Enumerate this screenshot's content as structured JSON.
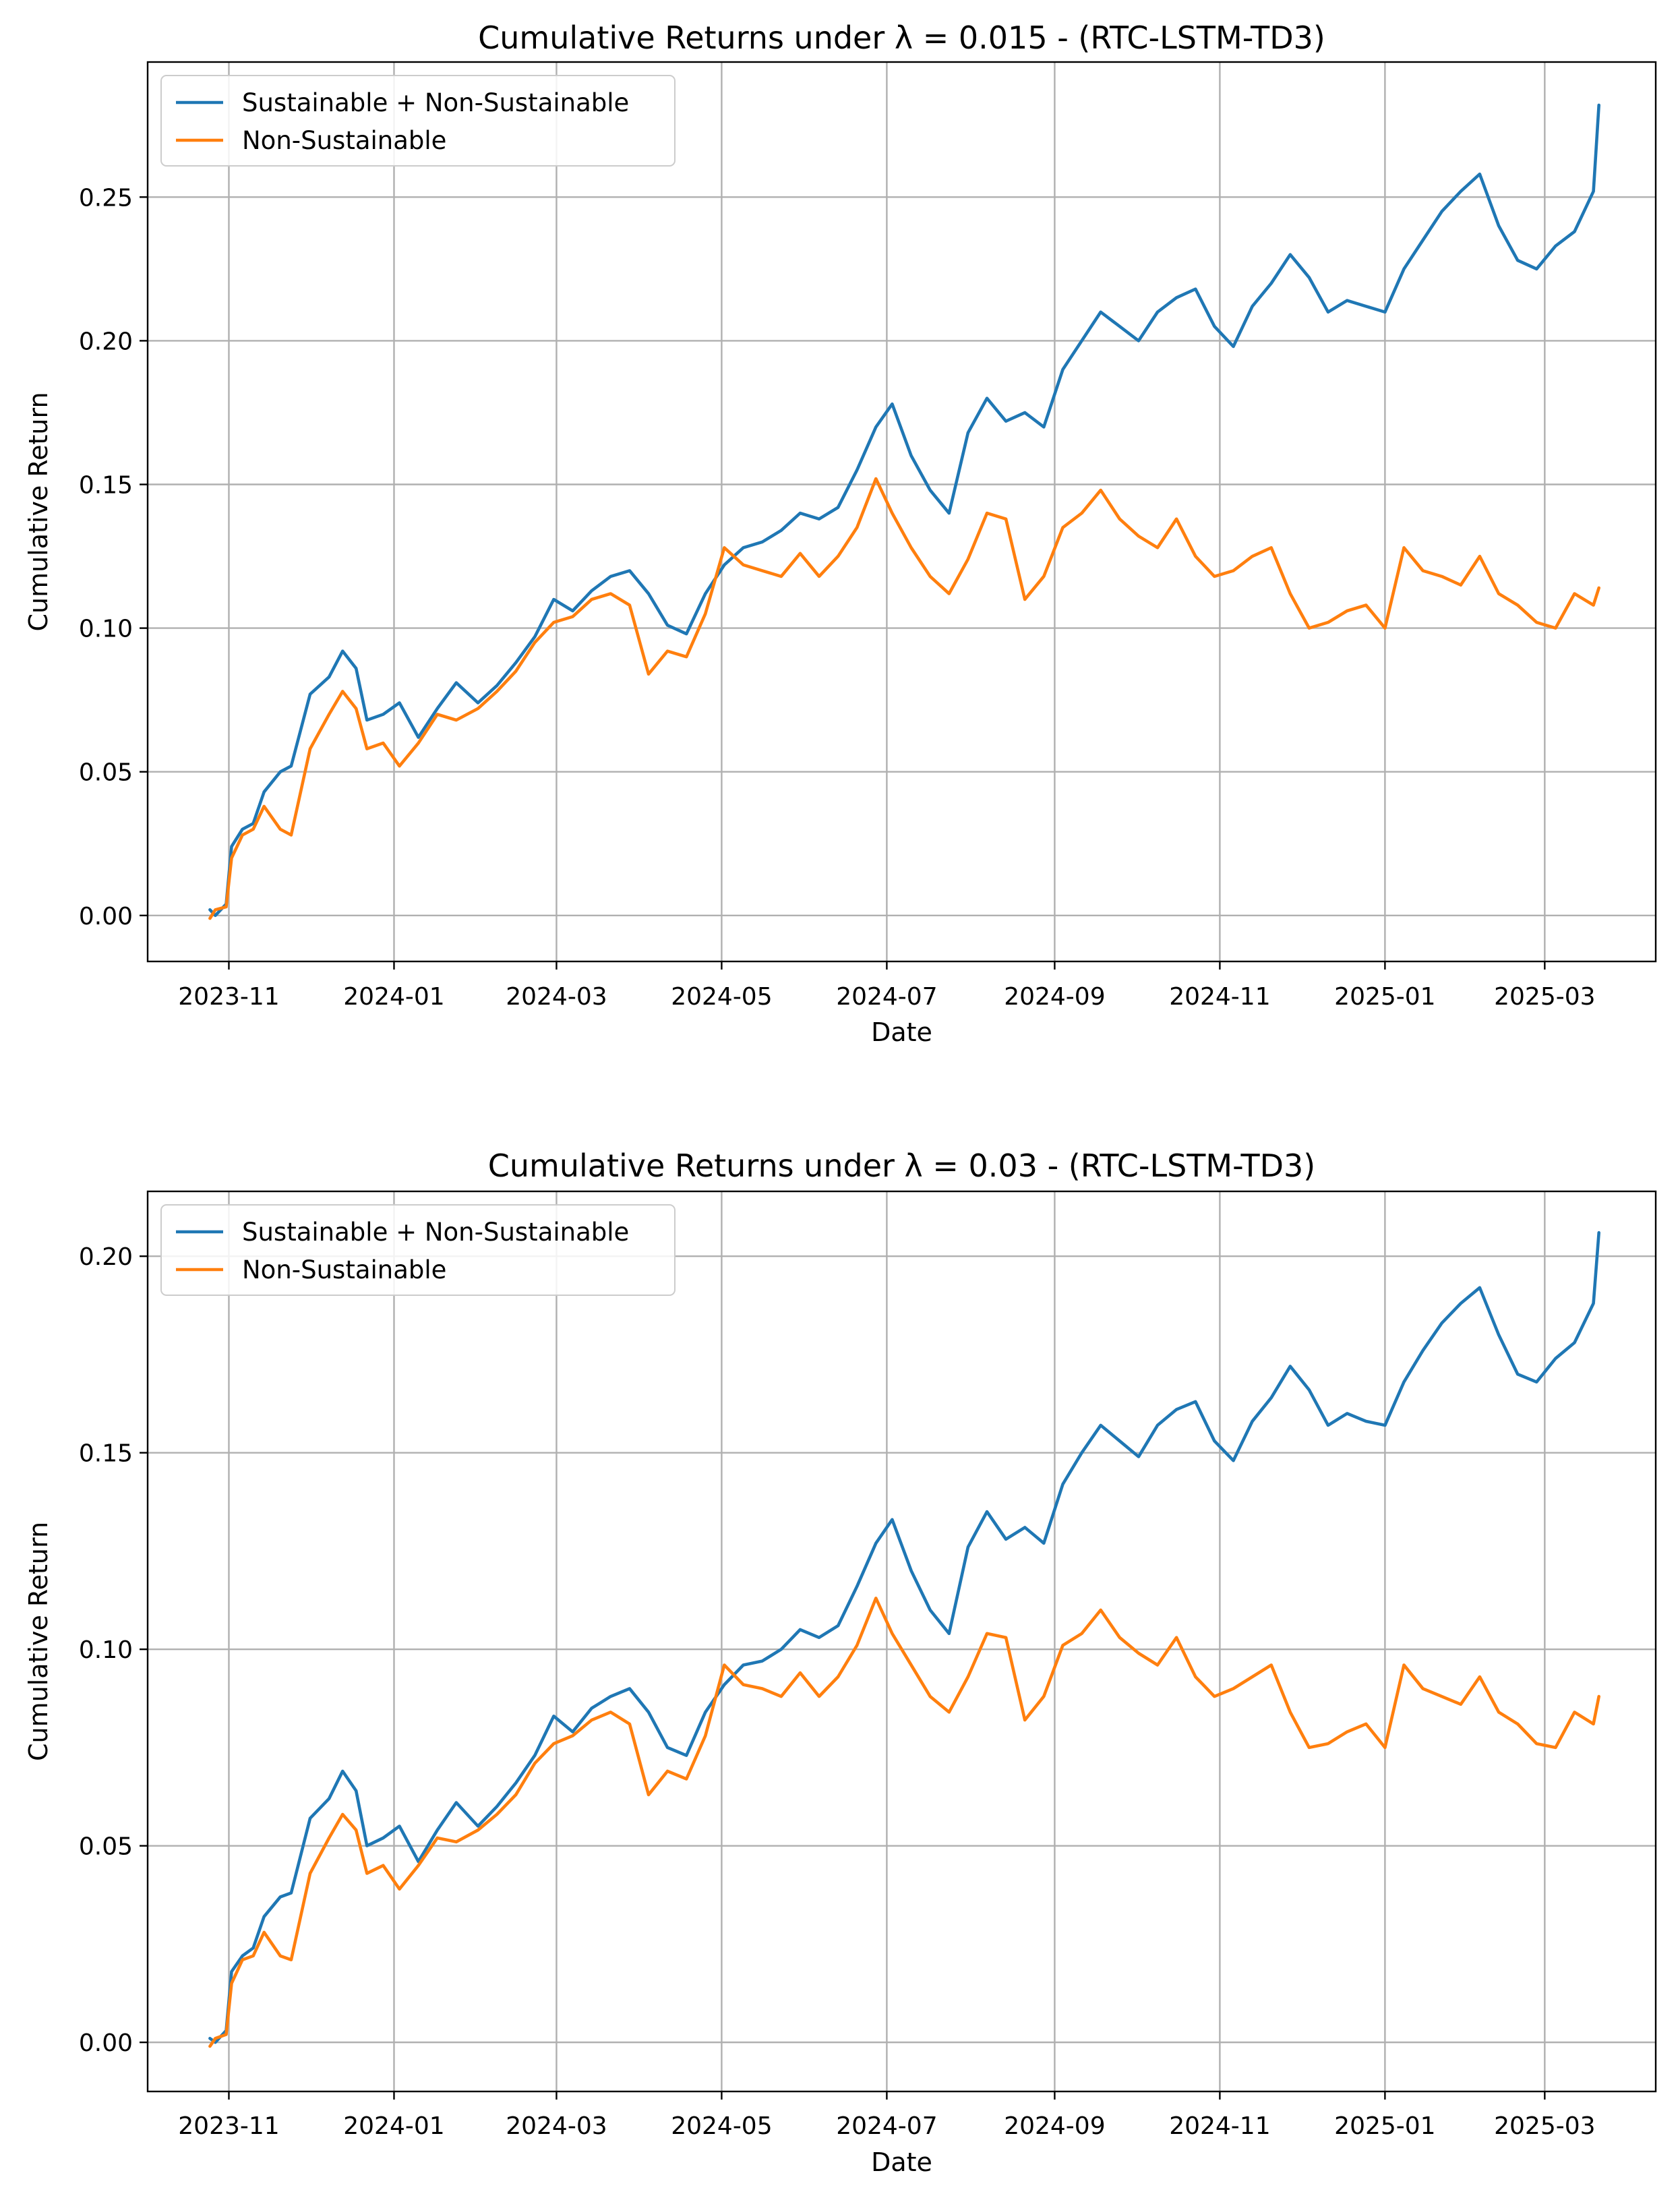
{
  "colors": {
    "blue": "#1f77b4",
    "orange": "#ff7f0e"
  },
  "chart_data": [
    {
      "type": "line",
      "title": "Cumulative Returns under λ = 0.015 - (RTC-LSTM-TD3)",
      "xlabel": "Date",
      "ylabel": "Cumulative Return",
      "xlim": [
        "2023-10-02",
        "2025-04-11"
      ],
      "ylim": [
        -0.016,
        0.297
      ],
      "grid": true,
      "legend_position": "top-left",
      "x_ticks": [
        {
          "date": "2023-11-01",
          "label": "2023-11"
        },
        {
          "date": "2024-01-01",
          "label": "2024-01"
        },
        {
          "date": "2024-03-01",
          "label": "2024-03"
        },
        {
          "date": "2024-05-01",
          "label": "2024-05"
        },
        {
          "date": "2024-07-01",
          "label": "2024-07"
        },
        {
          "date": "2024-09-01",
          "label": "2024-09"
        },
        {
          "date": "2024-11-01",
          "label": "2024-11"
        },
        {
          "date": "2025-01-01",
          "label": "2025-01"
        },
        {
          "date": "2025-03-01",
          "label": "2025-03"
        }
      ],
      "y_ticks": [
        {
          "value": 0.0,
          "label": "0.00"
        },
        {
          "value": 0.05,
          "label": "0.05"
        },
        {
          "value": 0.1,
          "label": "0.10"
        },
        {
          "value": 0.15,
          "label": "0.15"
        },
        {
          "value": 0.2,
          "label": "0.20"
        },
        {
          "value": 0.25,
          "label": "0.25"
        }
      ],
      "series": [
        {
          "name": "Sustainable + Non-Sustainable",
          "color": "#1f77b4",
          "x": [
            "2023-10-25",
            "2023-10-27",
            "2023-10-31",
            "2023-11-02",
            "2023-11-06",
            "2023-11-10",
            "2023-11-14",
            "2023-11-20",
            "2023-11-24",
            "2023-12-01",
            "2023-12-08",
            "2023-12-13",
            "2023-12-18",
            "2023-12-22",
            "2023-12-28",
            "2024-01-03",
            "2024-01-10",
            "2024-01-17",
            "2024-01-24",
            "2024-02-01",
            "2024-02-08",
            "2024-02-15",
            "2024-02-22",
            "2024-02-29",
            "2024-03-07",
            "2024-03-14",
            "2024-03-21",
            "2024-03-28",
            "2024-04-04",
            "2024-04-11",
            "2024-04-18",
            "2024-04-25",
            "2024-05-02",
            "2024-05-09",
            "2024-05-16",
            "2024-05-23",
            "2024-05-30",
            "2024-06-06",
            "2024-06-13",
            "2024-06-20",
            "2024-06-27",
            "2024-07-03",
            "2024-07-10",
            "2024-07-17",
            "2024-07-24",
            "2024-07-31",
            "2024-08-07",
            "2024-08-14",
            "2024-08-21",
            "2024-08-28",
            "2024-09-04",
            "2024-09-11",
            "2024-09-18",
            "2024-09-25",
            "2024-10-02",
            "2024-10-09",
            "2024-10-16",
            "2024-10-23",
            "2024-10-30",
            "2024-11-06",
            "2024-11-13",
            "2024-11-20",
            "2024-11-27",
            "2024-12-04",
            "2024-12-11",
            "2024-12-18",
            "2024-12-25",
            "2025-01-01",
            "2025-01-08",
            "2025-01-15",
            "2025-01-22",
            "2025-01-29",
            "2025-02-05",
            "2025-02-12",
            "2025-02-19",
            "2025-02-26",
            "2025-03-05",
            "2025-03-12",
            "2025-03-19",
            "2025-03-21"
          ],
          "values": [
            0.002,
            0.0,
            0.004,
            0.024,
            0.03,
            0.032,
            0.043,
            0.05,
            0.052,
            0.077,
            0.083,
            0.092,
            0.086,
            0.068,
            0.07,
            0.074,
            0.062,
            0.072,
            0.081,
            0.074,
            0.08,
            0.088,
            0.097,
            0.11,
            0.106,
            0.113,
            0.118,
            0.12,
            0.112,
            0.101,
            0.098,
            0.112,
            0.122,
            0.128,
            0.13,
            0.134,
            0.14,
            0.138,
            0.142,
            0.155,
            0.17,
            0.178,
            0.16,
            0.148,
            0.14,
            0.168,
            0.18,
            0.172,
            0.175,
            0.17,
            0.19,
            0.2,
            0.21,
            0.205,
            0.2,
            0.21,
            0.215,
            0.218,
            0.205,
            0.198,
            0.212,
            0.22,
            0.23,
            0.222,
            0.21,
            0.214,
            0.212,
            0.21,
            0.225,
            0.235,
            0.245,
            0.252,
            0.258,
            0.24,
            0.228,
            0.225,
            0.233,
            0.238,
            0.252,
            0.282
          ]
        },
        {
          "name": "Non-Sustainable",
          "color": "#ff7f0e",
          "x": [
            "2023-10-25",
            "2023-10-27",
            "2023-10-31",
            "2023-11-02",
            "2023-11-06",
            "2023-11-10",
            "2023-11-14",
            "2023-11-20",
            "2023-11-24",
            "2023-12-01",
            "2023-12-08",
            "2023-12-13",
            "2023-12-18",
            "2023-12-22",
            "2023-12-28",
            "2024-01-03",
            "2024-01-10",
            "2024-01-17",
            "2024-01-24",
            "2024-02-01",
            "2024-02-08",
            "2024-02-15",
            "2024-02-22",
            "2024-02-29",
            "2024-03-07",
            "2024-03-14",
            "2024-03-21",
            "2024-03-28",
            "2024-04-04",
            "2024-04-11",
            "2024-04-18",
            "2024-04-25",
            "2024-05-02",
            "2024-05-09",
            "2024-05-16",
            "2024-05-23",
            "2024-05-30",
            "2024-06-06",
            "2024-06-13",
            "2024-06-20",
            "2024-06-27",
            "2024-07-03",
            "2024-07-10",
            "2024-07-17",
            "2024-07-24",
            "2024-07-31",
            "2024-08-07",
            "2024-08-14",
            "2024-08-21",
            "2024-08-28",
            "2024-09-04",
            "2024-09-11",
            "2024-09-18",
            "2024-09-25",
            "2024-10-02",
            "2024-10-09",
            "2024-10-16",
            "2024-10-23",
            "2024-10-30",
            "2024-11-06",
            "2024-11-13",
            "2024-11-20",
            "2024-11-27",
            "2024-12-04",
            "2024-12-11",
            "2024-12-18",
            "2024-12-25",
            "2025-01-01",
            "2025-01-08",
            "2025-01-15",
            "2025-01-22",
            "2025-01-29",
            "2025-02-05",
            "2025-02-12",
            "2025-02-19",
            "2025-02-26",
            "2025-03-05",
            "2025-03-12",
            "2025-03-19",
            "2025-03-21"
          ],
          "values": [
            -0.001,
            0.002,
            0.003,
            0.02,
            0.028,
            0.03,
            0.038,
            0.03,
            0.028,
            0.058,
            0.07,
            0.078,
            0.072,
            0.058,
            0.06,
            0.052,
            0.06,
            0.07,
            0.068,
            0.072,
            0.078,
            0.085,
            0.095,
            0.102,
            0.104,
            0.11,
            0.112,
            0.108,
            0.084,
            0.092,
            0.09,
            0.105,
            0.128,
            0.122,
            0.12,
            0.118,
            0.126,
            0.118,
            0.125,
            0.135,
            0.152,
            0.14,
            0.128,
            0.118,
            0.112,
            0.124,
            0.14,
            0.138,
            0.11,
            0.118,
            0.135,
            0.14,
            0.148,
            0.138,
            0.132,
            0.128,
            0.138,
            0.125,
            0.118,
            0.12,
            0.125,
            0.128,
            0.112,
            0.1,
            0.102,
            0.106,
            0.108,
            0.1,
            0.128,
            0.12,
            0.118,
            0.115,
            0.125,
            0.112,
            0.108,
            0.102,
            0.1,
            0.112,
            0.108,
            0.114
          ]
        }
      ]
    },
    {
      "type": "line",
      "title": "Cumulative Returns under λ = 0.03 - (RTC-LSTM-TD3)",
      "xlabel": "Date",
      "ylabel": "Cumulative Return",
      "xlim": [
        "2023-10-02",
        "2025-04-11"
      ],
      "ylim": [
        -0.0125,
        0.2165
      ],
      "grid": true,
      "legend_position": "top-left",
      "x_ticks": [
        {
          "date": "2023-11-01",
          "label": "2023-11"
        },
        {
          "date": "2024-01-01",
          "label": "2024-01"
        },
        {
          "date": "2024-03-01",
          "label": "2024-03"
        },
        {
          "date": "2024-05-01",
          "label": "2024-05"
        },
        {
          "date": "2024-07-01",
          "label": "2024-07"
        },
        {
          "date": "2024-09-01",
          "label": "2024-09"
        },
        {
          "date": "2024-11-01",
          "label": "2024-11"
        },
        {
          "date": "2025-01-01",
          "label": "2025-01"
        },
        {
          "date": "2025-03-01",
          "label": "2025-03"
        }
      ],
      "y_ticks": [
        {
          "value": 0.0,
          "label": "0.00"
        },
        {
          "value": 0.05,
          "label": "0.05"
        },
        {
          "value": 0.1,
          "label": "0.10"
        },
        {
          "value": 0.15,
          "label": "0.15"
        },
        {
          "value": 0.2,
          "label": "0.20"
        }
      ],
      "series": [
        {
          "name": "Sustainable + Non-Sustainable",
          "color": "#1f77b4",
          "x": [
            "2023-10-25",
            "2023-10-27",
            "2023-10-31",
            "2023-11-02",
            "2023-11-06",
            "2023-11-10",
            "2023-11-14",
            "2023-11-20",
            "2023-11-24",
            "2023-12-01",
            "2023-12-08",
            "2023-12-13",
            "2023-12-18",
            "2023-12-22",
            "2023-12-28",
            "2024-01-03",
            "2024-01-10",
            "2024-01-17",
            "2024-01-24",
            "2024-02-01",
            "2024-02-08",
            "2024-02-15",
            "2024-02-22",
            "2024-02-29",
            "2024-03-07",
            "2024-03-14",
            "2024-03-21",
            "2024-03-28",
            "2024-04-04",
            "2024-04-11",
            "2024-04-18",
            "2024-04-25",
            "2024-05-02",
            "2024-05-09",
            "2024-05-16",
            "2024-05-23",
            "2024-05-30",
            "2024-06-06",
            "2024-06-13",
            "2024-06-20",
            "2024-06-27",
            "2024-07-03",
            "2024-07-10",
            "2024-07-17",
            "2024-07-24",
            "2024-07-31",
            "2024-08-07",
            "2024-08-14",
            "2024-08-21",
            "2024-08-28",
            "2024-09-04",
            "2024-09-11",
            "2024-09-18",
            "2024-09-25",
            "2024-10-02",
            "2024-10-09",
            "2024-10-16",
            "2024-10-23",
            "2024-10-30",
            "2024-11-06",
            "2024-11-13",
            "2024-11-20",
            "2024-11-27",
            "2024-12-04",
            "2024-12-11",
            "2024-12-18",
            "2024-12-25",
            "2025-01-01",
            "2025-01-08",
            "2025-01-15",
            "2025-01-22",
            "2025-01-29",
            "2025-02-05",
            "2025-02-12",
            "2025-02-19",
            "2025-02-26",
            "2025-03-05",
            "2025-03-12",
            "2025-03-19",
            "2025-03-21"
          ],
          "values": [
            0.001,
            0.0,
            0.003,
            0.018,
            0.022,
            0.024,
            0.032,
            0.037,
            0.038,
            0.057,
            0.062,
            0.069,
            0.064,
            0.05,
            0.052,
            0.055,
            0.046,
            0.054,
            0.061,
            0.055,
            0.06,
            0.066,
            0.073,
            0.083,
            0.079,
            0.085,
            0.088,
            0.09,
            0.084,
            0.075,
            0.073,
            0.084,
            0.091,
            0.096,
            0.097,
            0.1,
            0.105,
            0.103,
            0.106,
            0.116,
            0.127,
            0.133,
            0.12,
            0.11,
            0.104,
            0.126,
            0.135,
            0.128,
            0.131,
            0.127,
            0.142,
            0.15,
            0.157,
            0.153,
            0.149,
            0.157,
            0.161,
            0.163,
            0.153,
            0.148,
            0.158,
            0.164,
            0.172,
            0.166,
            0.157,
            0.16,
            0.158,
            0.157,
            0.168,
            0.176,
            0.183,
            0.188,
            0.192,
            0.18,
            0.17,
            0.168,
            0.174,
            0.178,
            0.188,
            0.206
          ]
        },
        {
          "name": "Non-Sustainable",
          "color": "#ff7f0e",
          "x": [
            "2023-10-25",
            "2023-10-27",
            "2023-10-31",
            "2023-11-02",
            "2023-11-06",
            "2023-11-10",
            "2023-11-14",
            "2023-11-20",
            "2023-11-24",
            "2023-12-01",
            "2023-12-08",
            "2023-12-13",
            "2023-12-18",
            "2023-12-22",
            "2023-12-28",
            "2024-01-03",
            "2024-01-10",
            "2024-01-17",
            "2024-01-24",
            "2024-02-01",
            "2024-02-08",
            "2024-02-15",
            "2024-02-22",
            "2024-02-29",
            "2024-03-07",
            "2024-03-14",
            "2024-03-21",
            "2024-03-28",
            "2024-04-04",
            "2024-04-11",
            "2024-04-18",
            "2024-04-25",
            "2024-05-02",
            "2024-05-09",
            "2024-05-16",
            "2024-05-23",
            "2024-05-30",
            "2024-06-06",
            "2024-06-13",
            "2024-06-20",
            "2024-06-27",
            "2024-07-03",
            "2024-07-10",
            "2024-07-17",
            "2024-07-24",
            "2024-07-31",
            "2024-08-07",
            "2024-08-14",
            "2024-08-21",
            "2024-08-28",
            "2024-09-04",
            "2024-09-11",
            "2024-09-18",
            "2024-09-25",
            "2024-10-02",
            "2024-10-09",
            "2024-10-16",
            "2024-10-23",
            "2024-10-30",
            "2024-11-06",
            "2024-11-13",
            "2024-11-20",
            "2024-11-27",
            "2024-12-04",
            "2024-12-11",
            "2024-12-18",
            "2024-12-25",
            "2025-01-01",
            "2025-01-08",
            "2025-01-15",
            "2025-01-22",
            "2025-01-29",
            "2025-02-05",
            "2025-02-12",
            "2025-02-19",
            "2025-02-26",
            "2025-03-05",
            "2025-03-12",
            "2025-03-19",
            "2025-03-21"
          ],
          "values": [
            -0.001,
            0.001,
            0.002,
            0.015,
            0.021,
            0.022,
            0.028,
            0.022,
            0.021,
            0.043,
            0.052,
            0.058,
            0.054,
            0.043,
            0.045,
            0.039,
            0.045,
            0.052,
            0.051,
            0.054,
            0.058,
            0.063,
            0.071,
            0.076,
            0.078,
            0.082,
            0.084,
            0.081,
            0.063,
            0.069,
            0.067,
            0.078,
            0.096,
            0.091,
            0.09,
            0.088,
            0.094,
            0.088,
            0.093,
            0.101,
            0.113,
            0.104,
            0.096,
            0.088,
            0.084,
            0.093,
            0.104,
            0.103,
            0.082,
            0.088,
            0.101,
            0.104,
            0.11,
            0.103,
            0.099,
            0.096,
            0.103,
            0.093,
            0.088,
            0.09,
            0.093,
            0.096,
            0.084,
            0.075,
            0.076,
            0.079,
            0.081,
            0.075,
            0.096,
            0.09,
            0.088,
            0.086,
            0.093,
            0.084,
            0.081,
            0.076,
            0.075,
            0.084,
            0.081,
            0.088
          ]
        }
      ]
    }
  ]
}
